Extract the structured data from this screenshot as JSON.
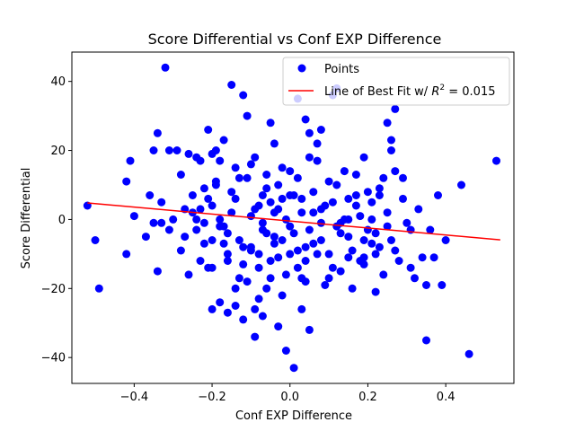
{
  "chart_data": {
    "type": "scatter",
    "title": "Score Differential vs Conf EXP Difference",
    "xlabel": "Conf EXP Difference",
    "ylabel": "Score Differential",
    "xlim": [
      -0.56,
      0.575
    ],
    "ylim": [
      -47.5,
      48.5
    ],
    "xticks": [
      -0.4,
      -0.2,
      0.0,
      0.2,
      0.4
    ],
    "xtick_labels": [
      "−0.4",
      "−0.2",
      "0.0",
      "0.2",
      "0.4"
    ],
    "yticks": [
      -40,
      -20,
      0,
      20,
      40
    ],
    "ytick_labels": [
      "−40",
      "−20",
      "0",
      "20",
      "40"
    ],
    "grid": false,
    "legend": {
      "placement": "top-right",
      "points_label": "Points",
      "fit_label_prefix": "Line of Best Fit w/ ",
      "fit_label_math": "R",
      "fit_label_sup": "2",
      "fit_label_suffix": " = 0.015"
    },
    "colors": {
      "points": "#0000ff",
      "fit_line": "#ff0000"
    },
    "fit_line": {
      "x": [
        -0.52,
        0.54
      ],
      "y": [
        4.8,
        -5.9
      ]
    },
    "series": [
      {
        "name": "Points",
        "points": [
          [
            -0.52,
            4
          ],
          [
            -0.5,
            -6
          ],
          [
            -0.49,
            -20
          ],
          [
            -0.41,
            17
          ],
          [
            -0.42,
            11
          ],
          [
            -0.4,
            1
          ],
          [
            -0.42,
            -10
          ],
          [
            -0.37,
            -5
          ],
          [
            -0.36,
            7
          ],
          [
            -0.35,
            -1
          ],
          [
            -0.34,
            -15
          ],
          [
            -0.33,
            -1
          ],
          [
            -0.35,
            20
          ],
          [
            -0.34,
            25
          ],
          [
            -0.32,
            44
          ],
          [
            -0.31,
            20
          ],
          [
            -0.29,
            20
          ],
          [
            -0.28,
            -9
          ],
          [
            -0.27,
            -5
          ],
          [
            -0.26,
            -16
          ],
          [
            -0.25,
            2
          ],
          [
            -0.24,
            18
          ],
          [
            -0.23,
            3
          ],
          [
            -0.22,
            -7
          ],
          [
            -0.21,
            -14
          ],
          [
            -0.2,
            -14
          ],
          [
            -0.2,
            -6
          ],
          [
            -0.21,
            6
          ],
          [
            -0.2,
            19
          ],
          [
            -0.21,
            26
          ],
          [
            -0.19,
            20
          ],
          [
            -0.18,
            17
          ],
          [
            -0.17,
            -2
          ],
          [
            -0.17,
            -7
          ],
          [
            -0.16,
            -12
          ],
          [
            -0.15,
            8
          ],
          [
            -0.15,
            2
          ],
          [
            -0.14,
            -20
          ],
          [
            -0.13,
            12
          ],
          [
            -0.12,
            36
          ],
          [
            -0.11,
            30
          ],
          [
            -0.09,
            3
          ],
          [
            -0.1,
            -8
          ],
          [
            -0.08,
            -14
          ],
          [
            -0.09,
            -26
          ],
          [
            -0.08,
            -23
          ],
          [
            -0.07,
            -28
          ],
          [
            -0.06,
            13
          ],
          [
            -0.05,
            28
          ],
          [
            -0.05,
            5
          ],
          [
            -0.04,
            -5
          ],
          [
            -0.03,
            -11
          ],
          [
            -0.02,
            -22
          ],
          [
            -0.01,
            0
          ],
          [
            0.0,
            -2
          ],
          [
            0.01,
            7
          ],
          [
            0.02,
            12
          ],
          [
            0.03,
            -17
          ],
          [
            0.04,
            -18
          ],
          [
            0.05,
            25
          ],
          [
            0.06,
            -7
          ],
          [
            0.07,
            17
          ],
          [
            0.08,
            -1
          ],
          [
            0.09,
            4
          ],
          [
            0.1,
            -10
          ],
          [
            0.11,
            -14
          ],
          [
            0.12,
            10
          ],
          [
            0.13,
            -4
          ],
          [
            0.14,
            0
          ],
          [
            0.15,
            6
          ],
          [
            0.16,
            -20
          ],
          [
            0.17,
            13
          ],
          [
            0.18,
            -12
          ],
          [
            0.19,
            18
          ],
          [
            0.2,
            -3
          ],
          [
            0.21,
            -7
          ],
          [
            0.22,
            -21
          ],
          [
            0.23,
            7
          ],
          [
            0.24,
            -16
          ],
          [
            0.25,
            2
          ],
          [
            0.26,
            -6
          ],
          [
            0.27,
            14
          ],
          [
            0.28,
            -12
          ],
          [
            0.29,
            6
          ],
          [
            0.3,
            -1
          ],
          [
            0.31,
            -14
          ],
          [
            0.32,
            -17
          ],
          [
            0.33,
            3
          ],
          [
            0.34,
            -11
          ],
          [
            0.35,
            -19
          ],
          [
            0.36,
            -3
          ],
          [
            0.37,
            -11
          ],
          [
            0.38,
            7
          ],
          [
            0.39,
            -19
          ],
          [
            0.4,
            -6
          ],
          [
            0.44,
            10
          ],
          [
            0.46,
            -39
          ],
          [
            0.53,
            17
          ],
          [
            0.35,
            -35
          ],
          [
            0.27,
            32
          ],
          [
            0.26,
            23
          ],
          [
            0.26,
            20
          ],
          [
            0.25,
            28
          ],
          [
            0.22,
            -10
          ],
          [
            0.19,
            -11
          ],
          [
            0.15,
            -5
          ],
          [
            0.12,
            38
          ],
          [
            0.11,
            36
          ],
          [
            0.08,
            26
          ],
          [
            0.07,
            22
          ],
          [
            0.05,
            -32
          ],
          [
            0.04,
            29
          ],
          [
            0.03,
            -26
          ],
          [
            0.02,
            35
          ],
          [
            0.01,
            -43
          ],
          [
            0.0,
            -10
          ],
          [
            -0.01,
            -38
          ],
          [
            -0.02,
            15
          ],
          [
            -0.03,
            -31
          ],
          [
            -0.04,
            22
          ],
          [
            -0.06,
            -20
          ],
          [
            -0.07,
            -3
          ],
          [
            -0.09,
            -34
          ],
          [
            -0.1,
            16
          ],
          [
            -0.11,
            -18
          ],
          [
            -0.12,
            -29
          ],
          [
            -0.13,
            -17
          ],
          [
            -0.14,
            6
          ],
          [
            -0.15,
            39
          ],
          [
            -0.16,
            -27
          ],
          [
            -0.17,
            23
          ],
          [
            -0.18,
            -24
          ],
          [
            -0.19,
            10
          ],
          [
            -0.2,
            -26
          ],
          [
            -0.22,
            9
          ],
          [
            -0.23,
            -12
          ],
          [
            -0.24,
            -3
          ],
          [
            -0.25,
            7
          ],
          [
            -0.27,
            3
          ],
          [
            -0.28,
            13
          ],
          [
            -0.3,
            0
          ],
          [
            -0.31,
            -3
          ],
          [
            -0.33,
            5
          ],
          [
            -0.26,
            19
          ],
          [
            -0.23,
            17
          ],
          [
            -0.19,
            11
          ],
          [
            -0.18,
            -2
          ],
          [
            -0.16,
            -10
          ],
          [
            -0.14,
            -25
          ],
          [
            -0.13,
            -6
          ],
          [
            -0.12,
            -13
          ],
          [
            -0.11,
            12
          ],
          [
            -0.1,
            -9
          ],
          [
            -0.08,
            4
          ],
          [
            -0.07,
            -1
          ],
          [
            -0.06,
            9
          ],
          [
            -0.05,
            -12
          ],
          [
            -0.04,
            -7
          ],
          [
            -0.03,
            3
          ],
          [
            -0.02,
            6
          ],
          [
            -0.01,
            -16
          ],
          [
            0.0,
            14
          ],
          [
            0.01,
            -4
          ],
          [
            0.02,
            -9
          ],
          [
            0.03,
            2
          ],
          [
            0.04,
            -12
          ],
          [
            0.05,
            -3
          ],
          [
            0.06,
            8
          ],
          [
            0.07,
            -10
          ],
          [
            0.08,
            3
          ],
          [
            0.09,
            -19
          ],
          [
            0.1,
            11
          ],
          [
            0.11,
            5
          ],
          [
            0.12,
            -2
          ],
          [
            0.13,
            -15
          ],
          [
            0.14,
            14
          ],
          [
            0.15,
            0
          ],
          [
            0.16,
            -9
          ],
          [
            0.17,
            7
          ],
          [
            0.18,
            1
          ],
          [
            0.19,
            -13
          ],
          [
            0.2,
            8
          ],
          [
            0.21,
            5
          ],
          [
            0.22,
            -4
          ],
          [
            0.23,
            -8
          ],
          [
            0.24,
            12
          ],
          [
            0.1,
            -17
          ],
          [
            0.08,
            -6
          ],
          [
            0.06,
            2
          ],
          [
            0.05,
            18
          ],
          [
            0.04,
            -8
          ],
          [
            0.03,
            6
          ],
          [
            0.02,
            -14
          ],
          [
            0.0,
            7
          ],
          [
            -0.02,
            -6
          ],
          [
            -0.04,
            2
          ],
          [
            -0.06,
            -4
          ],
          [
            -0.08,
            -10
          ],
          [
            -0.1,
            1
          ],
          [
            -0.12,
            -8
          ],
          [
            -0.14,
            15
          ],
          [
            -0.16,
            -4
          ],
          [
            -0.18,
            0
          ],
          [
            -0.2,
            4
          ],
          [
            -0.22,
            -1
          ],
          [
            -0.24,
            0
          ],
          [
            0.13,
            -1
          ],
          [
            0.15,
            -11
          ],
          [
            0.17,
            4
          ],
          [
            0.19,
            -6
          ],
          [
            0.21,
            0
          ],
          [
            0.23,
            9
          ],
          [
            0.25,
            -2
          ],
          [
            0.27,
            -9
          ],
          [
            0.29,
            12
          ],
          [
            0.31,
            -3
          ],
          [
            -0.09,
            18
          ],
          [
            -0.07,
            7
          ],
          [
            -0.05,
            -17
          ],
          [
            -0.03,
            10
          ]
        ]
      }
    ]
  }
}
